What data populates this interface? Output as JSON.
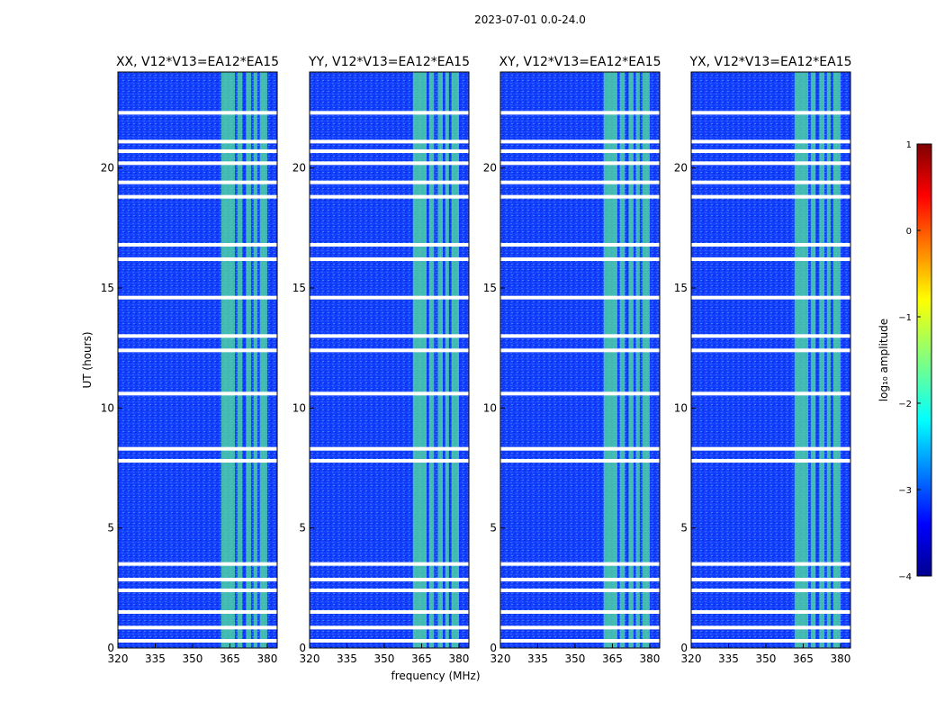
{
  "suptitle": "2023-07-01 0.0-24.0",
  "chart_data": {
    "type": "heatmap",
    "xlabel": "frequency (MHz)",
    "ylabel": "UT (hours)",
    "xlim": [
      320,
      384
    ],
    "ylim": [
      0,
      24
    ],
    "xticks": [
      320,
      335,
      350,
      365,
      380
    ],
    "yticks": [
      0,
      5,
      10,
      15,
      20
    ],
    "colorbar": {
      "label": "log₁₀ amplitude",
      "range": [
        -4,
        1
      ],
      "ticks": [
        1,
        0,
        -1,
        -2,
        -3,
        -4
      ],
      "tick_labels": [
        "1",
        "0",
        "−1",
        "−2",
        "−3",
        "−4"
      ],
      "colormap": "jet"
    },
    "panels": [
      {
        "title": "XX, V12*V13=EA12*EA15"
      },
      {
        "title": "YY, V12*V13=EA12*EA15"
      },
      {
        "title": "XY, V12*V13=EA12*EA15"
      },
      {
        "title": "YX, V12*V13=EA12*EA15"
      }
    ],
    "background_log_amplitude": -3.0,
    "rfi_bands_mhz": [
      [
        361.5,
        367
      ],
      [
        368,
        370
      ],
      [
        371.5,
        373.5
      ],
      [
        374.5,
        376
      ],
      [
        377,
        380
      ]
    ],
    "rfi_log_amplitude": -2.0,
    "flagged_ut_hours": [
      0.3,
      0.85,
      1.5,
      2.4,
      2.85,
      3.5,
      7.8,
      8.3,
      10.6,
      12.4,
      13.0,
      14.6,
      16.2,
      16.8,
      18.8,
      19.4,
      20.2,
      20.7,
      21.1,
      22.3
    ]
  }
}
